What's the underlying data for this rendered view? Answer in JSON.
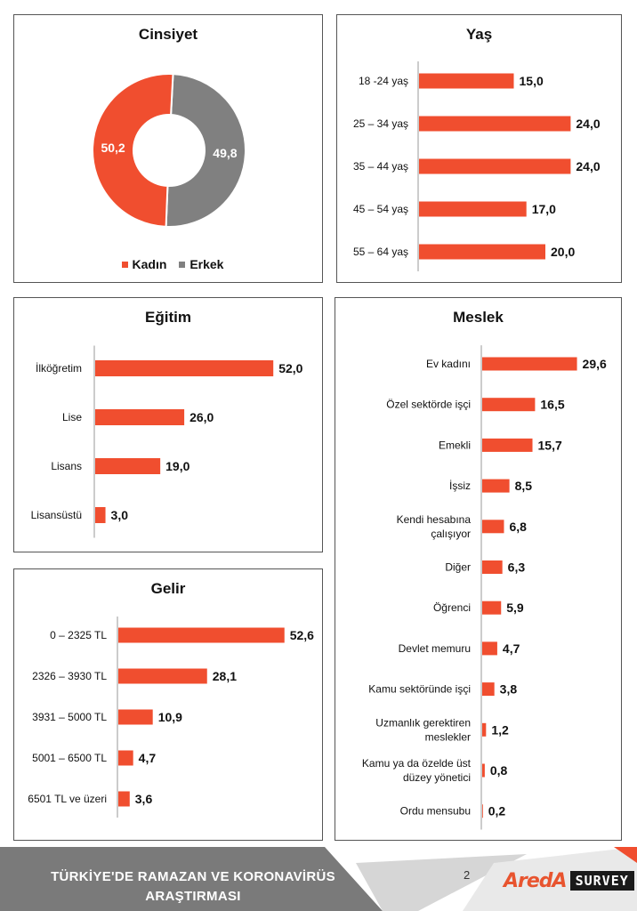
{
  "colors": {
    "accent": "#f04e2f",
    "gray": "#808080",
    "footer_dark": "#7a7a7a",
    "footer_light": "#d6d6d6"
  },
  "chart_data": [
    {
      "type": "pie",
      "title": "Cinsiyet",
      "categories": [
        "Kadın",
        "Erkek"
      ],
      "values": [
        50.2,
        49.8
      ],
      "value_labels": [
        "50,2",
        "49,8"
      ],
      "colors": [
        "#f04e2f",
        "#808080"
      ],
      "legend": "bottom",
      "donut": true
    },
    {
      "type": "bar",
      "orientation": "horizontal",
      "title": "Yaş",
      "categories": [
        "18 -24 yaş",
        "25 – 34 yaş",
        "35 – 44 yaş",
        "45 – 54 yaş",
        "55 – 64 yaş"
      ],
      "values": [
        15.0,
        24.0,
        24.0,
        17.0,
        20.0
      ],
      "value_labels": [
        "15,0",
        "24,0",
        "24,0",
        "17,0",
        "20,0"
      ],
      "grid": false
    },
    {
      "type": "bar",
      "orientation": "horizontal",
      "title": "Eğitim",
      "categories": [
        "İlköğretim",
        "Lise",
        "Lisans",
        "Lisansüstü"
      ],
      "values": [
        52.0,
        26.0,
        19.0,
        3.0
      ],
      "value_labels": [
        "52,0",
        "26,0",
        "19,0",
        "3,0"
      ],
      "grid": false
    },
    {
      "type": "bar",
      "orientation": "horizontal",
      "title": "Gelir",
      "categories": [
        "0 – 2325 TL",
        "2326 – 3930 TL",
        "3931 – 5000 TL",
        "5001 – 6500 TL",
        "6501 TL ve üzeri"
      ],
      "values": [
        52.6,
        28.1,
        10.9,
        4.7,
        3.6
      ],
      "value_labels": [
        "52,6",
        "28,1",
        "10,9",
        "4,7",
        "3,6"
      ],
      "grid": false
    },
    {
      "type": "bar",
      "orientation": "horizontal",
      "title": "Meslek",
      "categories": [
        "Ev kadını",
        "Özel sektörde işçi",
        "Emekli",
        "İşsiz",
        "Kendi hesabına\nçalışıyor",
        "Diğer",
        "Öğrenci",
        "Devlet memuru",
        "Kamu sektöründe işçi",
        "Uzmanlık gerektiren\nmeslekler",
        "Kamu ya da özelde üst\ndüzey yönetici",
        "Ordu mensubu"
      ],
      "values": [
        29.6,
        16.5,
        15.7,
        8.5,
        6.8,
        6.3,
        5.9,
        4.7,
        3.8,
        1.2,
        0.8,
        0.2
      ],
      "value_labels": [
        "29,6",
        "16,5",
        "15,7",
        "8,5",
        "6,8",
        "6,3",
        "5,9",
        "4,7",
        "3,8",
        "1,2",
        "0,8",
        "0,2"
      ],
      "grid": false
    }
  ],
  "footer": {
    "title": "TÜRKİYE'DE  RAMAZAN VE KORONAVİRÜS ARAŞTIRMASI",
    "page_number": "2",
    "logo_word": "AredA",
    "logo_box": "SURVEY"
  }
}
